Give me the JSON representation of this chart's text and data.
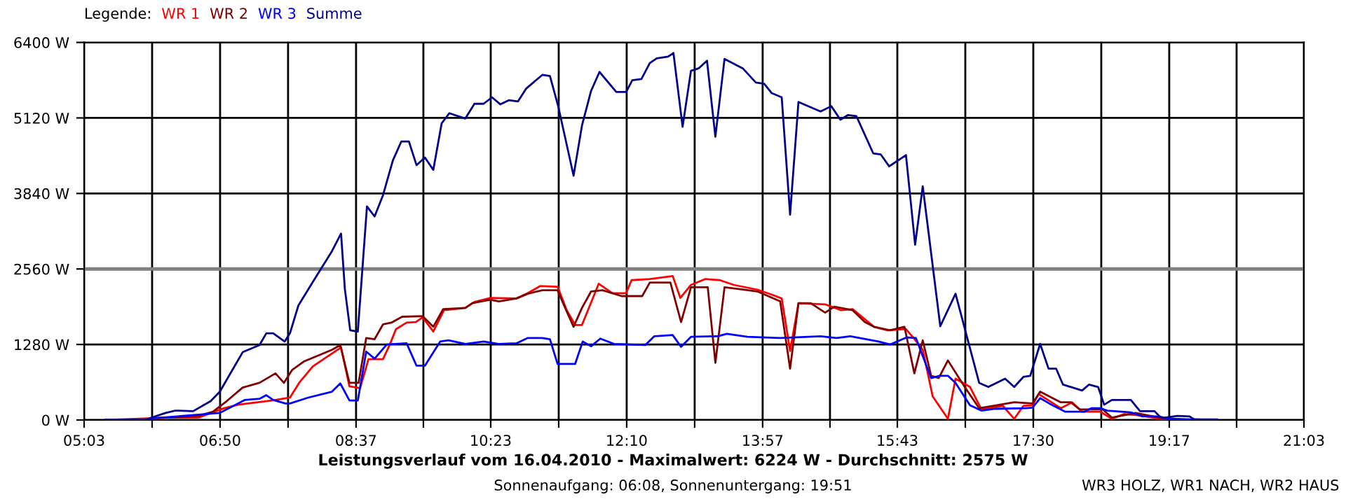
{
  "chart_data": {
    "type": "line",
    "title": "Leistungsverlauf vom 16.04.2010 - Maximalwert: 6224 W - Durchschnitt: 2575 W",
    "subtitle": "Sonnenaufgang: 06:08, Sonnenuntergang: 19:51",
    "legend_title": "Legende:",
    "annotations": [
      "WR3 HOLZ, WR1 NACH, WR2 HAUS"
    ],
    "legend": "top left",
    "grid": true,
    "marker": "none",
    "line_style": "solid",
    "xlim": [
      5.05,
      21.05
    ],
    "ylim": [
      0,
      6400
    ],
    "xticks": [
      {
        "value": 5.05,
        "label": "05:03"
      },
      {
        "value": 5.9417,
        "label": null
      },
      {
        "value": 6.8333,
        "label": "06:50"
      },
      {
        "value": 7.725,
        "label": null
      },
      {
        "value": 8.6167,
        "label": "08:37"
      },
      {
        "value": 9.5,
        "label": null
      },
      {
        "value": 10.3833,
        "label": "10:23"
      },
      {
        "value": 11.275,
        "label": null
      },
      {
        "value": 12.1667,
        "label": "12:10"
      },
      {
        "value": 13.0583,
        "label": null
      },
      {
        "value": 13.95,
        "label": "13:57"
      },
      {
        "value": 14.8333,
        "label": null
      },
      {
        "value": 15.7167,
        "label": "15:43"
      },
      {
        "value": 16.6083,
        "label": null
      },
      {
        "value": 17.5,
        "label": "17:30"
      },
      {
        "value": 18.3917,
        "label": null
      },
      {
        "value": 19.2833,
        "label": "19:17"
      },
      {
        "value": 20.1667,
        "label": null
      },
      {
        "value": 21.05,
        "label": "21:03"
      }
    ],
    "yticks": [
      {
        "value": 0,
        "label": "0 W"
      },
      {
        "value": 1280,
        "label": "1280 W"
      },
      {
        "value": 2560,
        "label": "2560 W"
      },
      {
        "value": 3840,
        "label": "3840 W"
      },
      {
        "value": 5120,
        "label": "5120 W"
      },
      {
        "value": 6400,
        "label": "6400 W"
      }
    ],
    "ref_lines": [
      {
        "axis": "y",
        "value": 2560,
        "color": "#808080"
      }
    ],
    "series": [
      {
        "name": "WR 1",
        "color": "#ff0000",
        "x": [
          5.33,
          6.15,
          6.55,
          6.71,
          6.89,
          7.07,
          7.44,
          7.56,
          7.75,
          7.87,
          8.05,
          8.42,
          8.53,
          8.67,
          8.78,
          8.97,
          9.06,
          9.14,
          9.28,
          9.4,
          9.49,
          9.63,
          9.77,
          10.05,
          10.17,
          10.38,
          10.72,
          10.87,
          11.03,
          11.26,
          11.38,
          11.49,
          11.58,
          11.8,
          11.98,
          12.16,
          12.23,
          12.47,
          12.77,
          12.87,
          13.01,
          13.2,
          13.39,
          13.57,
          13.88,
          14.06,
          14.2,
          14.31,
          14.42,
          14.77,
          14.98,
          15.13,
          15.41,
          15.59,
          15.83,
          15.93,
          16.05,
          16.18,
          16.38,
          16.48,
          16.67,
          16.82,
          17.1,
          17.25,
          17.37,
          17.49,
          17.57,
          17.86,
          18.01,
          18.14,
          18.38,
          18.53,
          18.69,
          18.9,
          19.15,
          19.39
        ],
        "values": [
          0,
          40,
          40,
          120,
          200,
          260,
          320,
          340,
          380,
          630,
          910,
          1230,
          570,
          540,
          1030,
          1030,
          1280,
          1540,
          1650,
          1660,
          1740,
          1500,
          1860,
          1900,
          2000,
          2070,
          2060,
          2150,
          2270,
          2260,
          1860,
          1610,
          1610,
          2310,
          2150,
          2150,
          2370,
          2390,
          2440,
          2070,
          2290,
          2390,
          2370,
          2290,
          2210,
          2130,
          2060,
          1170,
          1980,
          1960,
          1860,
          1880,
          1580,
          1520,
          1540,
          1390,
          1190,
          400,
          20,
          700,
          560,
          180,
          240,
          20,
          240,
          250,
          440,
          200,
          300,
          140,
          140,
          20,
          100,
          80,
          20,
          0
        ]
      },
      {
        "name": "WR 2",
        "color": "#800000",
        "x": [
          5.33,
          5.84,
          5.97,
          6.55,
          6.74,
          6.92,
          7.13,
          7.35,
          7.56,
          7.67,
          7.78,
          7.93,
          8.3,
          8.41,
          8.53,
          8.65,
          8.75,
          8.86,
          8.97,
          9.08,
          9.22,
          9.49,
          9.63,
          9.76,
          10.05,
          10.14,
          10.38,
          10.49,
          10.72,
          10.87,
          11.06,
          11.26,
          11.36,
          11.47,
          11.58,
          11.7,
          11.85,
          12.1,
          12.37,
          12.47,
          12.74,
          12.88,
          13.01,
          13.23,
          13.33,
          13.45,
          13.69,
          13.88,
          14.18,
          14.31,
          14.42,
          14.58,
          14.77,
          14.89,
          15.13,
          15.29,
          15.41,
          15.62,
          15.81,
          15.94,
          16.05,
          16.16,
          16.26,
          16.38,
          16.6,
          16.79,
          16.97,
          17.25,
          17.49,
          17.59,
          17.86,
          17.99,
          18.11,
          18.41,
          18.53,
          18.84,
          19.15,
          19.58
        ],
        "values": [
          0,
          0,
          30,
          70,
          140,
          320,
          550,
          630,
          790,
          630,
          850,
          990,
          1190,
          1270,
          630,
          630,
          1390,
          1370,
          1620,
          1650,
          1750,
          1760,
          1580,
          1880,
          1900,
          1980,
          2040,
          2010,
          2060,
          2140,
          2200,
          2200,
          1900,
          1580,
          1900,
          2180,
          2200,
          2100,
          2100,
          2330,
          2330,
          1660,
          2250,
          2250,
          970,
          2250,
          2210,
          2180,
          2010,
          870,
          1980,
          1980,
          1820,
          1920,
          1860,
          1660,
          1580,
          1520,
          1580,
          790,
          1350,
          750,
          710,
          1010,
          560,
          200,
          240,
          300,
          280,
          480,
          300,
          300,
          180,
          180,
          40,
          120,
          40,
          0
        ]
      },
      {
        "name": "WR 3",
        "color": "#0000ff",
        "x": [
          5.33,
          5.84,
          5.97,
          6.55,
          6.83,
          7.16,
          7.35,
          7.44,
          7.53,
          7.69,
          7.75,
          7.99,
          8.3,
          8.41,
          8.53,
          8.64,
          8.75,
          8.86,
          9.02,
          9.28,
          9.41,
          9.52,
          9.72,
          9.83,
          10.05,
          10.29,
          10.49,
          10.72,
          10.87,
          11.06,
          11.16,
          11.26,
          11.49,
          11.59,
          11.7,
          11.82,
          12.0,
          12.41,
          12.53,
          12.77,
          12.88,
          13.01,
          13.36,
          13.48,
          13.75,
          14.18,
          14.71,
          14.92,
          15.1,
          15.47,
          15.62,
          15.84,
          15.96,
          16.16,
          16.27,
          16.38,
          16.48,
          16.67,
          16.82,
          17.0,
          17.4,
          17.49,
          17.59,
          17.71,
          17.92,
          18.17,
          18.26,
          18.38,
          18.47,
          18.78,
          18.93,
          19.15,
          19.27,
          19.64,
          19.87
        ],
        "values": [
          0,
          0,
          30,
          90,
          120,
          340,
          360,
          420,
          340,
          280,
          280,
          380,
          480,
          620,
          330,
          330,
          1160,
          1040,
          1280,
          1300,
          920,
          920,
          1330,
          1350,
          1290,
          1330,
          1290,
          1300,
          1390,
          1390,
          1370,
          950,
          950,
          1330,
          1250,
          1380,
          1290,
          1270,
          1420,
          1440,
          1240,
          1410,
          1420,
          1460,
          1410,
          1390,
          1420,
          1390,
          1420,
          1330,
          1280,
          1400,
          1390,
          710,
          750,
          750,
          630,
          250,
          160,
          190,
          200,
          210,
          370,
          280,
          140,
          140,
          200,
          200,
          160,
          130,
          60,
          60,
          20,
          10,
          0
        ]
      },
      {
        "name": "Summe",
        "color": "#00008b",
        "x": [
          5.33,
          5.84,
          6.12,
          6.25,
          6.48,
          6.71,
          6.83,
          7.13,
          7.35,
          7.44,
          7.53,
          7.68,
          7.75,
          7.86,
          8.05,
          8.3,
          8.42,
          8.47,
          8.54,
          8.64,
          8.76,
          8.86,
          8.97,
          9.1,
          9.21,
          9.31,
          9.41,
          9.52,
          9.63,
          9.74,
          9.84,
          10.05,
          10.17,
          10.29,
          10.4,
          10.51,
          10.62,
          10.74,
          10.85,
          11.06,
          11.16,
          11.27,
          11.47,
          11.58,
          11.7,
          11.81,
          12.03,
          12.16,
          12.24,
          12.36,
          12.47,
          12.56,
          12.71,
          12.78,
          12.9,
          13.01,
          13.11,
          13.22,
          13.33,
          13.45,
          13.69,
          13.86,
          13.97,
          14.07,
          14.2,
          14.31,
          14.42,
          14.71,
          14.85,
          14.97,
          15.07,
          15.18,
          15.4,
          15.5,
          15.61,
          15.83,
          15.95,
          16.05,
          16.28,
          16.48,
          16.79,
          16.91,
          17.13,
          17.25,
          17.37,
          17.46,
          17.59,
          17.7,
          17.8,
          17.89,
          18.14,
          18.23,
          18.35,
          18.43,
          18.53,
          18.78,
          18.9,
          19.09,
          19.18,
          19.39,
          19.55,
          19.61,
          19.91
        ],
        "values": [
          0,
          0,
          120,
          160,
          150,
          320,
          480,
          1150,
          1270,
          1470,
          1470,
          1330,
          1470,
          1940,
          2340,
          2860,
          3160,
          2220,
          1520,
          1500,
          3620,
          3450,
          3810,
          4400,
          4720,
          4720,
          4320,
          4450,
          4240,
          5030,
          5200,
          5110,
          5360,
          5360,
          5470,
          5350,
          5420,
          5400,
          5620,
          5850,
          5830,
          5310,
          4140,
          4990,
          5580,
          5900,
          5560,
          5560,
          5760,
          5780,
          6050,
          6130,
          6160,
          6220,
          4970,
          5920,
          5960,
          6090,
          4800,
          6120,
          5960,
          5720,
          5700,
          5540,
          5470,
          3480,
          5390,
          5230,
          5320,
          5090,
          5170,
          5150,
          4520,
          4500,
          4300,
          4490,
          2970,
          3960,
          1590,
          2140,
          630,
          560,
          700,
          560,
          730,
          750,
          1290,
          870,
          870,
          600,
          500,
          600,
          560,
          260,
          340,
          340,
          150,
          150,
          30,
          70,
          60,
          10,
          10
        ]
      }
    ]
  }
}
